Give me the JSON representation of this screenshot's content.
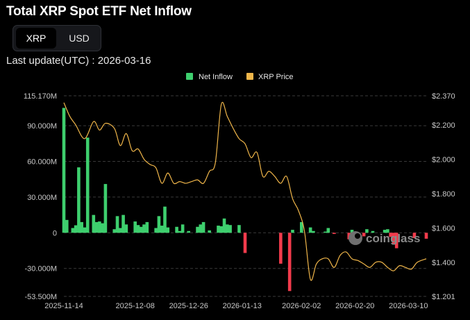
{
  "header": {
    "title": "Total XRP Spot ETF Net Inflow",
    "toggle_options": [
      "XRP",
      "USD"
    ],
    "toggle_selected": "XRP",
    "last_update": "Last update(UTC) : 2026-03-16"
  },
  "watermark": "coinglass",
  "colors": {
    "inflow_positive": "#3ecf6e",
    "inflow_negative": "#f23b4c",
    "price_line": "#f0b64a",
    "grid": "#3a3a3a",
    "background": "#000000"
  },
  "chart_data": {
    "type": "bar",
    "legend": [
      {
        "name": "Net Inflow",
        "color": "#3ecf6e"
      },
      {
        "name": "XRP Price",
        "color": "#f0b64a"
      }
    ],
    "legend_position": "top-center",
    "grid": true,
    "x_start": "2025-11-14",
    "x_end": "2026-03-16",
    "x_ticks": [
      "2025-11-14",
      "2025-12-08",
      "2025-12-26",
      "2026-01-13",
      "2026-02-02",
      "2026-02-20",
      "2026-03-10"
    ],
    "y_left": {
      "ticks": [
        115170000,
        90000000,
        60000000,
        30000000,
        0,
        -30000000,
        -53500000
      ],
      "tick_labels": [
        "115.170M",
        "90.000M",
        "60.000M",
        "30.000M",
        "0",
        "-30.000M",
        "-53.500M"
      ],
      "range": [
        -53500000,
        115170000
      ]
    },
    "y_right": {
      "ticks": [
        2.37,
        2.2,
        2.0,
        1.8,
        1.6,
        1.4,
        1.201
      ],
      "tick_labels": [
        "$2.370",
        "$2.200",
        "$2.000",
        "$1.800",
        "$1.600",
        "$1.400",
        "$1.201"
      ],
      "range": [
        1.201,
        2.37
      ]
    },
    "series": [
      {
        "name": "Net Inflow",
        "axis": "left",
        "dates": [
          "2025-11-14",
          "2025-11-15",
          "2025-11-17",
          "2025-11-18",
          "2025-11-19",
          "2025-11-20",
          "2025-11-21",
          "2025-11-22",
          "2025-11-24",
          "2025-11-25",
          "2025-11-26",
          "2025-11-27",
          "2025-11-28",
          "2025-12-01",
          "2025-12-02",
          "2025-12-03",
          "2025-12-04",
          "2025-12-05",
          "2025-12-08",
          "2025-12-09",
          "2025-12-10",
          "2025-12-11",
          "2025-12-12",
          "2025-12-15",
          "2025-12-16",
          "2025-12-17",
          "2025-12-18",
          "2025-12-19",
          "2025-12-22",
          "2025-12-23",
          "2025-12-24",
          "2025-12-26",
          "2025-12-29",
          "2025-12-30",
          "2025-12-31",
          "2026-01-02",
          "2026-01-05",
          "2026-01-06",
          "2026-01-07",
          "2026-01-08",
          "2026-01-09",
          "2026-01-12",
          "2026-01-13",
          "2026-01-14",
          "2026-01-15",
          "2026-01-16",
          "2026-01-20",
          "2026-01-21",
          "2026-01-22",
          "2026-01-23",
          "2026-01-26",
          "2026-01-27",
          "2026-01-28",
          "2026-01-29",
          "2026-01-30",
          "2026-02-02",
          "2026-02-03",
          "2026-02-04",
          "2026-02-05",
          "2026-02-06",
          "2026-02-09",
          "2026-02-10",
          "2026-02-11",
          "2026-02-12",
          "2026-02-13",
          "2026-02-17",
          "2026-02-18",
          "2026-02-19",
          "2026-02-20",
          "2026-02-23",
          "2026-02-24",
          "2026-02-25",
          "2026-02-26",
          "2026-02-27",
          "2026-03-02",
          "2026-03-03",
          "2026-03-04",
          "2026-03-05",
          "2026-03-06",
          "2026-03-09",
          "2026-03-10",
          "2026-03-11",
          "2026-03-12",
          "2026-03-13",
          "2026-03-16"
        ],
        "values": [
          105000000,
          10800000,
          4000000,
          6300000,
          55000000,
          9000000,
          4500000,
          80000000,
          15000000,
          9000000,
          9500000,
          8000000,
          41000000,
          3000000,
          14000000,
          4000000,
          15000000,
          7000000,
          9500000,
          6500000,
          5000000,
          7000000,
          9000000,
          4000000,
          14000000,
          6000000,
          22000000,
          4500000,
          5000000,
          1500000,
          7000000,
          1500000,
          5000000,
          7000000,
          9000000,
          2000000,
          6000000,
          5500000,
          12000000,
          7000000,
          6500000,
          6500000,
          0,
          -17000000,
          0,
          0,
          0,
          0,
          0,
          0,
          -26000000,
          0,
          0,
          -49000000,
          2500000,
          9000000,
          0,
          0,
          4500000,
          1500000,
          0,
          1000000,
          4000000,
          0,
          -1000000,
          0,
          -5500000,
          2500000,
          0,
          -3000000,
          3000000,
          0,
          1500000,
          0,
          2500000,
          3000000,
          -3500000,
          -10000000,
          -13000000,
          0,
          0,
          0,
          -4500000,
          0,
          -5000000
        ]
      },
      {
        "name": "XRP Price",
        "axis": "right",
        "dates": [
          "2025-11-14",
          "2025-11-16",
          "2025-11-18",
          "2025-11-21",
          "2025-11-24",
          "2025-11-26",
          "2025-11-28",
          "2025-12-01",
          "2025-12-03",
          "2025-12-05",
          "2025-12-07",
          "2025-12-09",
          "2025-12-11",
          "2025-12-13",
          "2025-12-15",
          "2025-12-17",
          "2025-12-19",
          "2025-12-21",
          "2025-12-23",
          "2025-12-25",
          "2025-12-27",
          "2025-12-29",
          "2025-12-31",
          "2026-01-02",
          "2026-01-04",
          "2026-01-06",
          "2026-01-08",
          "2026-01-10",
          "2026-01-12",
          "2026-01-14",
          "2026-01-16",
          "2026-01-18",
          "2026-01-20",
          "2026-01-22",
          "2026-01-24",
          "2026-01-26",
          "2026-01-28",
          "2026-01-30",
          "2026-02-01",
          "2026-02-03",
          "2026-02-05",
          "2026-02-07",
          "2026-02-09",
          "2026-02-11",
          "2026-02-13",
          "2026-02-15",
          "2026-02-17",
          "2026-02-19",
          "2026-02-21",
          "2026-02-23",
          "2026-02-25",
          "2026-02-27",
          "2026-03-01",
          "2026-03-03",
          "2026-03-05",
          "2026-03-07",
          "2026-03-09",
          "2026-03-11",
          "2026-03-13",
          "2026-03-16"
        ],
        "values": [
          2.33,
          2.25,
          2.2,
          2.12,
          2.22,
          2.17,
          2.21,
          2.18,
          2.08,
          2.15,
          2.05,
          2.06,
          2.0,
          1.97,
          1.95,
          1.86,
          1.92,
          1.86,
          1.87,
          1.86,
          1.87,
          1.88,
          1.86,
          1.93,
          1.98,
          2.32,
          2.25,
          2.18,
          2.12,
          2.09,
          2.01,
          2.04,
          1.9,
          1.93,
          1.9,
          1.86,
          1.9,
          1.77,
          1.7,
          1.58,
          1.3,
          1.39,
          1.42,
          1.42,
          1.37,
          1.44,
          1.46,
          1.42,
          1.41,
          1.39,
          1.37,
          1.4,
          1.4,
          1.37,
          1.35,
          1.38,
          1.37,
          1.36,
          1.4,
          1.42
        ]
      }
    ]
  }
}
